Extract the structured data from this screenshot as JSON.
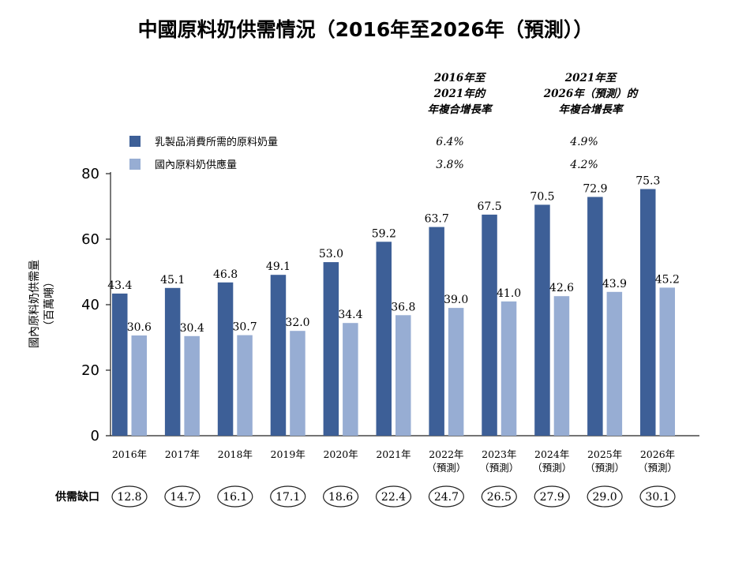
{
  "chart_data": {
    "type": "bar",
    "title": "中國原料奶供需情況（2016年至2026年（預測））",
    "ylabel": "國內原料奶供需量",
    "ylabel_unit": "（百萬噸）",
    "ylim": [
      0,
      80
    ],
    "yticks": [
      "0",
      "20",
      "40",
      "60",
      "80"
    ],
    "categories": [
      {
        "year": "2016年",
        "note": ""
      },
      {
        "year": "2017年",
        "note": ""
      },
      {
        "year": "2018年",
        "note": ""
      },
      {
        "year": "2019年",
        "note": ""
      },
      {
        "year": "2020年",
        "note": ""
      },
      {
        "year": "2021年",
        "note": ""
      },
      {
        "year": "2022年",
        "note": "（預測）"
      },
      {
        "year": "2023年",
        "note": "（預測）"
      },
      {
        "year": "2024年",
        "note": "（預測）"
      },
      {
        "year": "2025年",
        "note": "（預測）"
      },
      {
        "year": "2026年",
        "note": "（預測）"
      }
    ],
    "series": [
      {
        "name": "乳製品消費所需的原料奶量",
        "color": "#3d5f97",
        "values": [
          43.4,
          45.1,
          46.8,
          49.1,
          53.0,
          59.2,
          63.7,
          67.5,
          70.5,
          72.9,
          75.3
        ],
        "labels": [
          "43.4",
          "45.1",
          "46.8",
          "49.1",
          "53.0",
          "59.2",
          "63.7",
          "67.5",
          "70.5",
          "72.9",
          "75.3"
        ]
      },
      {
        "name": "國內原料奶供應量",
        "color": "#97add3",
        "values": [
          30.6,
          30.4,
          30.7,
          32.0,
          34.4,
          36.8,
          39.0,
          41.0,
          42.6,
          43.9,
          45.2
        ],
        "labels": [
          "30.6",
          "30.4",
          "30.7",
          "32.0",
          "34.4",
          "36.8",
          "39.0",
          "41.0",
          "42.6",
          "43.9",
          "45.2"
        ]
      }
    ],
    "cagr": {
      "headers": [
        [
          "2016年至",
          "2021年的",
          "年複合增長率"
        ],
        [
          "2021年至",
          "2026年（預測）的",
          "年複合增長率"
        ]
      ],
      "rows": [
        [
          "6.4%",
          "4.9%"
        ],
        [
          "3.8%",
          "4.2%"
        ]
      ]
    },
    "gap": {
      "label": "供需缺口",
      "values": [
        "12.8",
        "14.7",
        "16.1",
        "17.1",
        "18.6",
        "22.4",
        "24.7",
        "26.5",
        "27.9",
        "29.0",
        "30.1"
      ]
    },
    "grid": false,
    "legend_position": "top-left"
  }
}
